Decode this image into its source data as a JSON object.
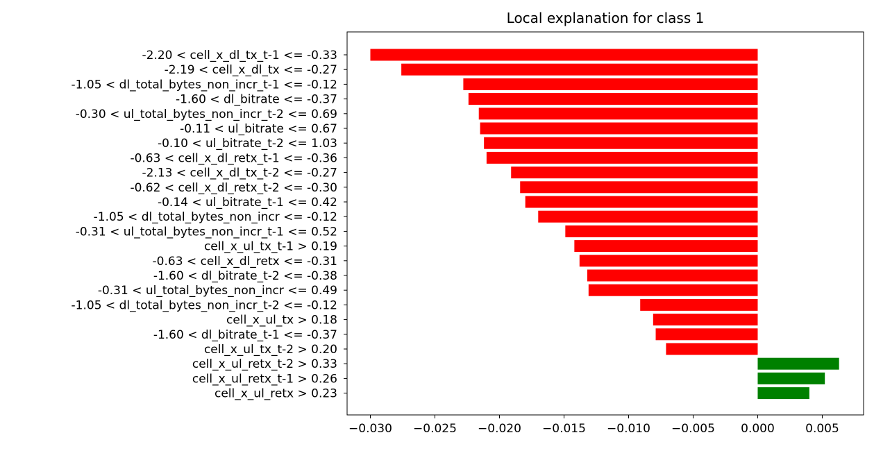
{
  "chart_data": {
    "type": "bar",
    "orientation": "horizontal",
    "title": "Local explanation for class 1",
    "xlabel": "",
    "ylabel": "",
    "xlim": [
      -0.0318,
      0.0082
    ],
    "xticks": [
      -0.03,
      -0.025,
      -0.02,
      -0.015,
      -0.01,
      -0.005,
      0.0,
      0.005
    ],
    "xtick_labels": [
      "−0.030",
      "−0.025",
      "−0.020",
      "−0.015",
      "−0.010",
      "−0.005",
      "0.000",
      "0.005"
    ],
    "grid": false,
    "colors": {
      "negative": "#ff0000",
      "positive": "#008000"
    },
    "categories": [
      "-2.20 < cell_x_dl_tx_t-1 <= -0.33",
      "-2.19 < cell_x_dl_tx <= -0.27",
      "-1.05 < dl_total_bytes_non_incr_t-1 <= -0.12",
      "-1.60 < dl_bitrate <= -0.37",
      "-0.30 < ul_total_bytes_non_incr_t-2 <= 0.69",
      "-0.11 < ul_bitrate <= 0.67",
      "-0.10 < ul_bitrate_t-2 <= 1.03",
      "-0.63 < cell_x_dl_retx_t-1 <= -0.36",
      "-2.13 < cell_x_dl_tx_t-2 <= -0.27",
      "-0.62 < cell_x_dl_retx_t-2 <= -0.30",
      "-0.14 < ul_bitrate_t-1 <= 0.42",
      "-1.05 < dl_total_bytes_non_incr <= -0.12",
      "-0.31 < ul_total_bytes_non_incr_t-1 <= 0.52",
      "cell_x_ul_tx_t-1 > 0.19",
      "-0.63 < cell_x_dl_retx <= -0.31",
      "-1.60 < dl_bitrate_t-2 <= -0.38",
      "-0.31 < ul_total_bytes_non_incr <= 0.49",
      "-1.05 < dl_total_bytes_non_incr_t-2 <= -0.12",
      "cell_x_ul_tx > 0.18",
      "-1.60 < dl_bitrate_t-1 <= -0.37",
      "cell_x_ul_tx_t-2 > 0.20",
      "cell_x_ul_retx_t-2 > 0.33",
      "cell_x_ul_retx_t-1 > 0.26",
      "cell_x_ul_retx > 0.23"
    ],
    "values": [
      -0.03,
      -0.0276,
      -0.0228,
      -0.0224,
      -0.0216,
      -0.0215,
      -0.0212,
      -0.021,
      -0.0191,
      -0.0184,
      -0.018,
      -0.017,
      -0.0149,
      -0.0142,
      -0.0138,
      -0.0132,
      -0.0131,
      -0.0091,
      -0.0081,
      -0.0079,
      -0.0071,
      0.0063,
      0.0052,
      0.004
    ]
  }
}
